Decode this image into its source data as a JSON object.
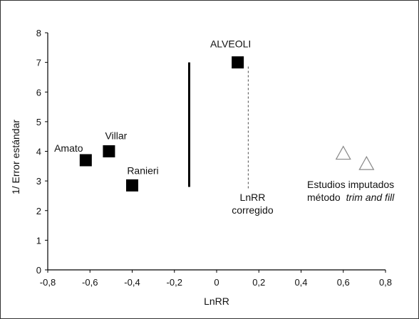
{
  "chart_data": {
    "type": "scatter",
    "xlabel": "LnRR",
    "ylabel": "1/ Error estándar",
    "xlim": [
      -0.8,
      0.8
    ],
    "ylim": [
      0,
      8
    ],
    "x_ticks": [
      -0.8,
      -0.6,
      -0.4,
      -0.2,
      0,
      0.2,
      0.4,
      0.6,
      0.8
    ],
    "x_tick_labels": [
      "-0,8",
      "-0,6",
      "-0,4",
      "-0,2",
      "0",
      "0,2",
      "0,4",
      "0,6",
      "0,8"
    ],
    "y_ticks": [
      0,
      1,
      2,
      3,
      4,
      5,
      6,
      7,
      8
    ],
    "y_tick_labels": [
      "0",
      "1",
      "2",
      "3",
      "4",
      "5",
      "6",
      "7",
      "8"
    ],
    "grid": false,
    "series": [
      {
        "marker": "filled-square",
        "color": "#000000",
        "points": [
          {
            "label": "Amato",
            "x": -0.62,
            "y": 3.7
          },
          {
            "label": "Villar",
            "x": -0.51,
            "y": 4.0
          },
          {
            "label": "Ranieri",
            "x": -0.4,
            "y": 2.85
          },
          {
            "label": "ALVEOLI",
            "x": 0.1,
            "y": 7.0
          }
        ]
      },
      {
        "marker": "open-triangle",
        "color": "#888888",
        "points": [
          {
            "x": 0.6,
            "y": 3.95
          },
          {
            "x": 0.71,
            "y": 3.6
          }
        ]
      }
    ],
    "reference_lines": [
      {
        "style": "solid",
        "x": -0.13,
        "y_from": 2.8,
        "y_to": 7.0
      },
      {
        "style": "dashed",
        "x": 0.15,
        "y_from": 2.75,
        "y_to": 6.9
      }
    ],
    "annotations": [
      {
        "lines": [
          "LnRR",
          "corregido"
        ]
      },
      {
        "lines": [
          "Estudios imputados",
          "método "
        ],
        "italic_part": "trim and fill"
      }
    ]
  }
}
